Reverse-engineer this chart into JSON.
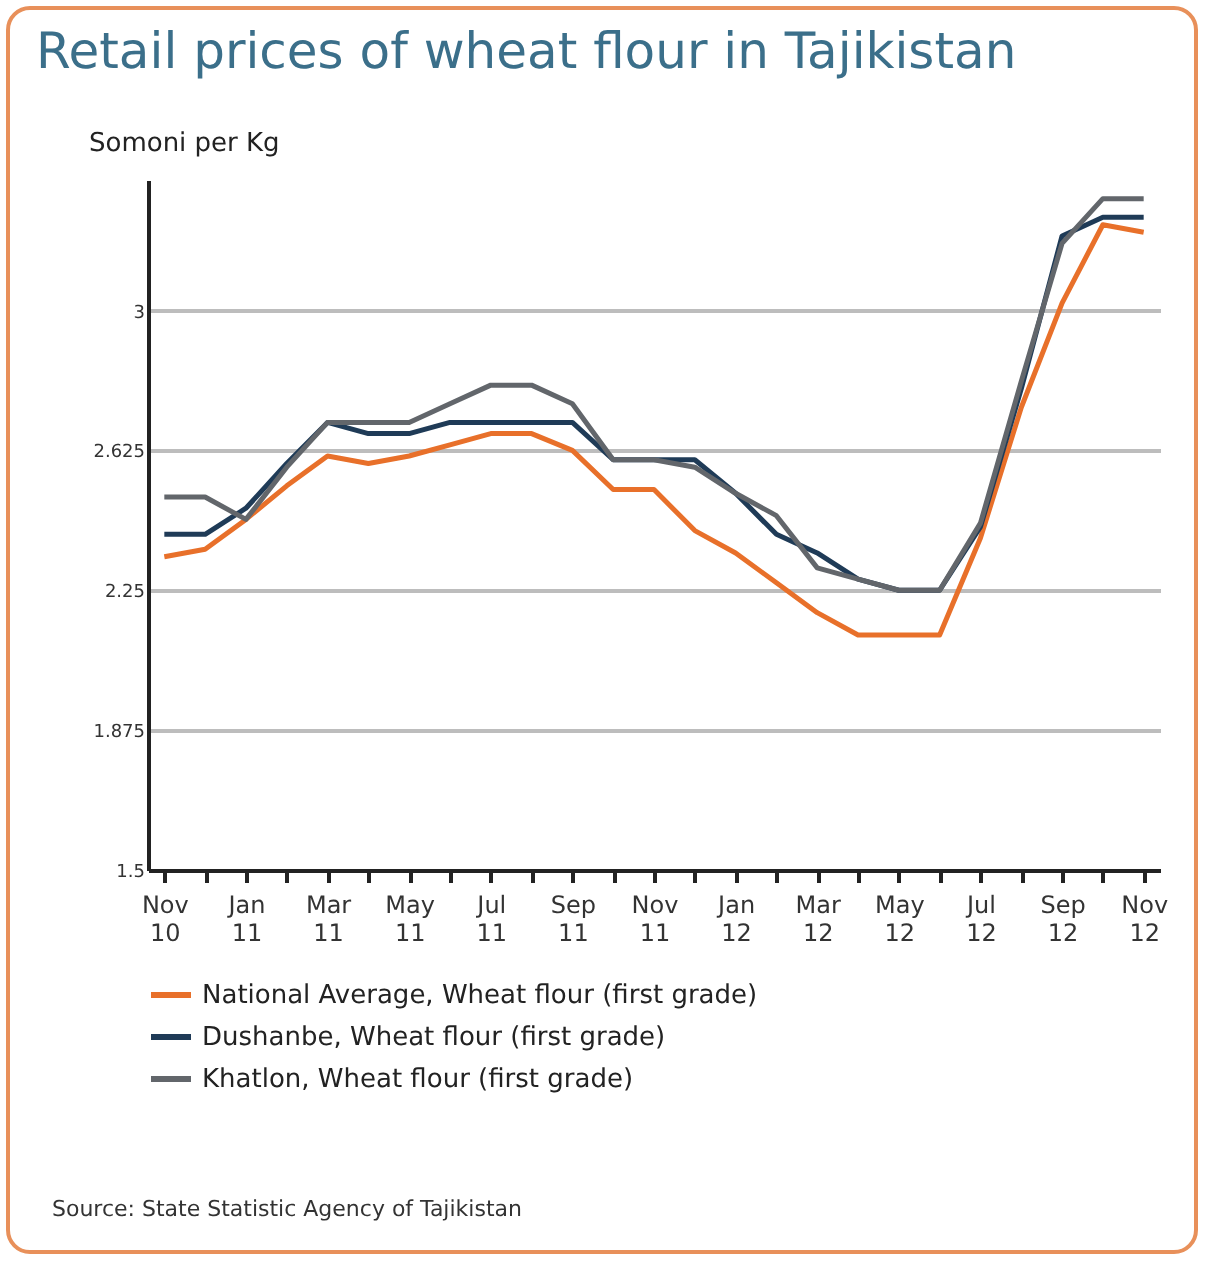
{
  "chart_data": {
    "type": "line",
    "title": "Retail prices of wheat flour in Tajikistan",
    "ylabel": "Somoni per Kg",
    "categories": [
      "Nov 10",
      null,
      "Jan 11",
      null,
      "Mar 11",
      null,
      "May 11",
      null,
      "Jul 11",
      null,
      "Sep 11",
      null,
      "Nov 11",
      null,
      "Jan 12",
      null,
      "Mar 12",
      null,
      "May 12",
      null,
      "Jul 12",
      null,
      "Sep 12",
      null,
      "Nov 12"
    ],
    "series": [
      {
        "name": "National Average, Wheat flour (first grade)",
        "color": "#e8702a",
        "values": [
          2.34,
          2.36,
          2.44,
          2.53,
          2.61,
          2.59,
          2.61,
          2.64,
          2.67,
          2.67,
          2.625,
          2.52,
          2.52,
          2.41,
          2.35,
          2.27,
          2.19,
          2.13,
          2.13,
          2.13,
          2.39,
          2.74,
          3.02,
          3.23,
          3.21
        ]
      },
      {
        "name": "Dushanbe, Wheat flour (first grade)",
        "color": "#1f3b57",
        "values": [
          2.4,
          2.4,
          2.47,
          2.59,
          2.7,
          2.67,
          2.67,
          2.7,
          2.7,
          2.7,
          2.7,
          2.6,
          2.6,
          2.6,
          2.51,
          2.4,
          2.35,
          2.28,
          2.25,
          2.25,
          2.42,
          2.79,
          3.2,
          3.25,
          3.25
        ]
      },
      {
        "name": "Khatlon, Wheat flour (first grade)",
        "color": "#62666b",
        "values": [
          2.5,
          2.5,
          2.44,
          2.58,
          2.7,
          2.7,
          2.7,
          2.75,
          2.8,
          2.8,
          2.75,
          2.6,
          2.6,
          2.58,
          2.51,
          2.45,
          2.31,
          2.28,
          2.25,
          2.25,
          2.43,
          2.81,
          3.18,
          3.3,
          3.3
        ]
      }
    ],
    "ylim": [
      1.5,
      3.35
    ],
    "yticks": [
      3,
      2.625,
      2.25,
      1.875,
      1.5
    ],
    "grid": "y",
    "legend": "bottom",
    "marker": "none",
    "line_style": "solid",
    "annotations": [
      "Source: State Statistic Agency of Tajikistan"
    ]
  }
}
